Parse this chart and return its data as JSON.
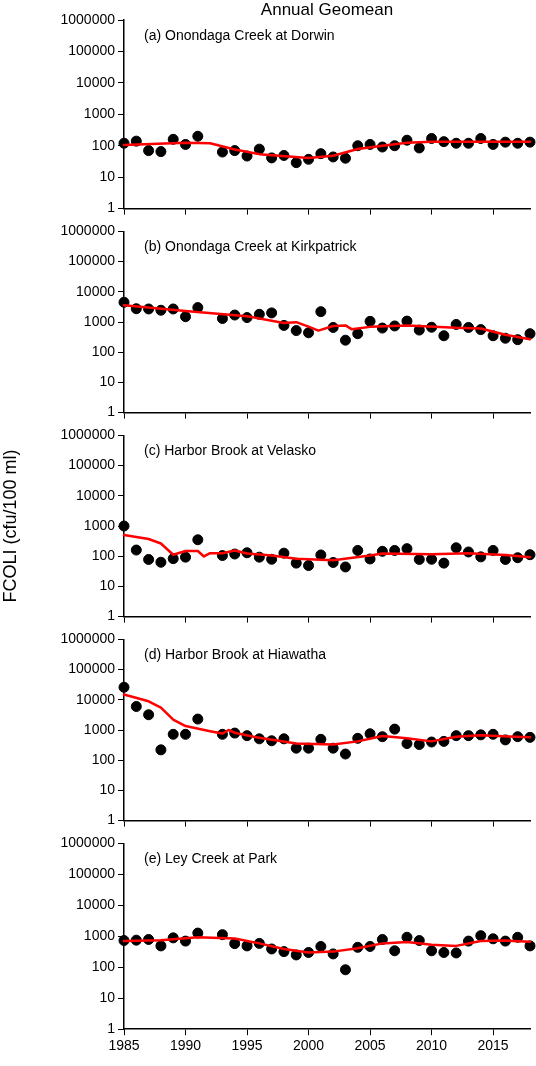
{
  "chart_data": [
    {
      "type": "scatter",
      "title": "Annual Geomean",
      "annotations": [
        "(a) Onondaga Creek at Dorwin"
      ],
      "x": [
        1985,
        1986,
        1987,
        1988,
        1989,
        1990,
        1991,
        1993,
        1994,
        1995,
        1996,
        1997,
        1998,
        1999,
        2000,
        2001,
        2002,
        2003,
        2004,
        2005,
        2006,
        2007,
        2008,
        2009,
        2010,
        2011,
        2012,
        2013,
        2014,
        2015,
        2016,
        2017,
        2018
      ],
      "xlim": [
        1985,
        2018
      ],
      "xticks": [
        1985,
        1990,
        1995,
        2000,
        2005,
        2010,
        2015
      ],
      "ylim": [
        1,
        1000000
      ],
      "yticks": [
        1,
        10,
        100,
        1000,
        10000,
        100000,
        1000000
      ],
      "log": true,
      "tick_labels": "y",
      "series": [
        {
          "color": "#000000",
          "marker": "circle",
          "values": [
            120,
            140,
            70,
            65,
            160,
            110,
            200,
            63,
            70,
            47,
            78,
            41,
            49,
            29,
            37,
            56,
            44,
            40,
            100,
            110,
            91,
            100,
            150,
            85,
            170,
            135,
            120,
            120,
            170,
            110,
            130,
            120,
            130
          ]
        },
        {
          "type": "line",
          "color": "#ff0000",
          "marker": "none",
          "x": [
            1985,
            1990,
            1992,
            1994,
            1996,
            2000,
            2002,
            2004,
            2006,
            2008,
            2010,
            2018
          ],
          "values": [
            105,
            125,
            120,
            76,
            54,
            41,
            48,
            79,
            100,
            125,
            135,
            135
          ]
        }
      ]
    },
    {
      "type": "scatter",
      "annotations": [
        "(b) Onondaga Creek at Kirkpatrick"
      ],
      "x": [
        1985,
        1986,
        1987,
        1988,
        1989,
        1990,
        1991,
        1993,
        1994,
        1995,
        1996,
        1997,
        1998,
        1999,
        2000,
        2001,
        2002,
        2003,
        2004,
        2005,
        2006,
        2007,
        2008,
        2009,
        2010,
        2011,
        2012,
        2013,
        2014,
        2015,
        2016,
        2017,
        2018
      ],
      "xlim": [
        1985,
        2018
      ],
      "xticks": [
        1985,
        1990,
        1995,
        2000,
        2005,
        2010,
        2015
      ],
      "ylim": [
        1,
        1000000
      ],
      "yticks": [
        1,
        10,
        100,
        1000,
        10000,
        100000,
        1000000
      ],
      "log": true,
      "tick_labels": "y",
      "series": [
        {
          "color": "#000000",
          "marker": "circle",
          "values": [
            4500,
            2750,
            2700,
            2450,
            2700,
            1500,
            3000,
            1300,
            1700,
            1400,
            1800,
            2000,
            770,
            520,
            440,
            2200,
            660,
            250,
            410,
            1050,
            630,
            740,
            1070,
            540,
            670,
            350,
            830,
            660,
            560,
            350,
            290,
            260,
            410
          ]
        },
        {
          "type": "line",
          "color": "#ff0000",
          "marker": "none",
          "x": [
            1985,
            1990,
            1995,
            1998,
            1999,
            2000,
            2000.8,
            2002,
            2003,
            2003.5,
            2005,
            2008,
            2012,
            2014,
            2016,
            2018
          ],
          "values": [
            3600,
            2300,
            1560,
            930,
            990,
            700,
            520,
            740,
            770,
            580,
            690,
            770,
            640,
            610,
            380,
            270
          ]
        }
      ]
    },
    {
      "type": "scatter",
      "annotations": [
        "(c) Harbor Brook at Velasko"
      ],
      "ylabel": "FCOLI (cfu/100 ml)",
      "x": [
        1985,
        1986,
        1987,
        1988,
        1989,
        1990,
        1991,
        1993,
        1994,
        1995,
        1996,
        1997,
        1998,
        1999,
        2000,
        2001,
        2002,
        2003,
        2004,
        2005,
        2006,
        2007,
        2008,
        2009,
        2010,
        2011,
        2012,
        2013,
        2014,
        2015,
        2016,
        2017,
        2018
      ],
      "xlim": [
        1985,
        2018
      ],
      "xticks": [
        1985,
        1990,
        1995,
        2000,
        2005,
        2010,
        2015
      ],
      "ylim": [
        1,
        1000000
      ],
      "yticks": [
        1,
        10,
        100,
        1000,
        10000,
        100000,
        1000000
      ],
      "log": true,
      "tick_labels": "y",
      "series": [
        {
          "color": "#000000",
          "marker": "circle",
          "values": [
            1000,
            160,
            78,
            63,
            83,
            93,
            350,
            105,
            118,
            130,
            93,
            79,
            126,
            59,
            49,
            110,
            62,
            44,
            155,
            81,
            145,
            155,
            178,
            78,
            79,
            59,
            190,
            138,
            95,
            155,
            78,
            89,
            112
          ]
        },
        {
          "type": "line",
          "color": "#ff0000",
          "marker": "none",
          "x": [
            1985,
            1987,
            1988,
            1989,
            1990,
            1991,
            1991.5,
            1992,
            1993,
            1994,
            1995,
            1997,
            1999,
            2002,
            2005,
            2006,
            2010,
            2013,
            2016,
            2018
          ],
          "values": [
            500,
            370,
            263,
            112,
            148,
            148,
            98,
            126,
            126,
            155,
            123,
            105,
            83,
            74,
            105,
            123,
            117,
            126,
            110,
            93
          ]
        }
      ]
    },
    {
      "type": "scatter",
      "annotations": [
        "(d) Harbor Brook at Hiawatha"
      ],
      "x": [
        1985,
        1986,
        1987,
        1988,
        1989,
        1990,
        1991,
        1993,
        1994,
        1995,
        1996,
        1997,
        1998,
        1999,
        2000,
        2001,
        2002,
        2003,
        2004,
        2005,
        2006,
        2007,
        2008,
        2009,
        2010,
        2011,
        2012,
        2013,
        2014,
        2015,
        2016,
        2017,
        2018
      ],
      "xlim": [
        1985,
        2018
      ],
      "xticks": [
        1985,
        1990,
        1995,
        2000,
        2005,
        2010,
        2015
      ],
      "ylim": [
        1,
        1000000
      ],
      "yticks": [
        1,
        10,
        100,
        1000,
        10000,
        100000,
        1000000
      ],
      "log": true,
      "tick_labels": "y",
      "series": [
        {
          "color": "#000000",
          "marker": "circle",
          "values": [
            26000,
            6000,
            3200,
            220,
            720,
            720,
            2300,
            720,
            790,
            650,
            510,
            440,
            510,
            250,
            250,
            490,
            250,
            160,
            530,
            750,
            600,
            1070,
            355,
            330,
            400,
            420,
            650,
            650,
            690,
            720,
            470,
            600,
            570
          ]
        },
        {
          "type": "line",
          "color": "#ff0000",
          "marker": "none",
          "x": [
            1985,
            1987,
            1988,
            1989,
            1990,
            1992,
            1993,
            1993.5,
            1994,
            1996,
            1999,
            2002,
            2004,
            2006,
            2008,
            2010,
            2012,
            2014,
            2018
          ],
          "values": [
            15000,
            8900,
            5500,
            2200,
            1350,
            910,
            760,
            1000,
            810,
            550,
            355,
            330,
            420,
            630,
            530,
            420,
            600,
            670,
            570
          ]
        }
      ]
    },
    {
      "type": "scatter",
      "annotations": [
        "(e) Ley Creek at Park"
      ],
      "x": [
        1985,
        1986,
        1987,
        1988,
        1989,
        1990,
        1991,
        1993,
        1994,
        1995,
        1996,
        1997,
        1998,
        1999,
        2000,
        2001,
        2002,
        2003,
        2004,
        2005,
        2006,
        2007,
        2008,
        2009,
        2010,
        2011,
        2012,
        2013,
        2014,
        2015,
        2016,
        2017,
        2018
      ],
      "xlim": [
        1985,
        2018
      ],
      "xticks": [
        1985,
        1990,
        1995,
        2000,
        2005,
        2010,
        2015
      ],
      "ylim": [
        1,
        1000000
      ],
      "yticks": [
        1,
        10,
        100,
        1000,
        10000,
        100000,
        1000000
      ],
      "log": true,
      "series": [
        {
          "color": "#000000",
          "marker": "circle",
          "values": [
            730,
            750,
            790,
            490,
            890,
            700,
            1270,
            1130,
            580,
            490,
            590,
            390,
            320,
            250,
            300,
            470,
            270,
            83,
            440,
            470,
            790,
            340,
            930,
            730,
            340,
            300,
            290,
            700,
            1050,
            830,
            700,
            930,
            490
          ]
        },
        {
          "type": "line",
          "color": "#ff0000",
          "marker": "none",
          "x": [
            1985,
            1988,
            1991,
            1994,
            1996,
            1998,
            2000,
            2002,
            2004,
            2006,
            2008,
            2010,
            2012,
            2014,
            2016,
            2018
          ],
          "values": [
            700,
            750,
            930,
            850,
            590,
            390,
            300,
            320,
            410,
            590,
            650,
            530,
            490,
            700,
            730,
            670
          ]
        }
      ]
    }
  ]
}
